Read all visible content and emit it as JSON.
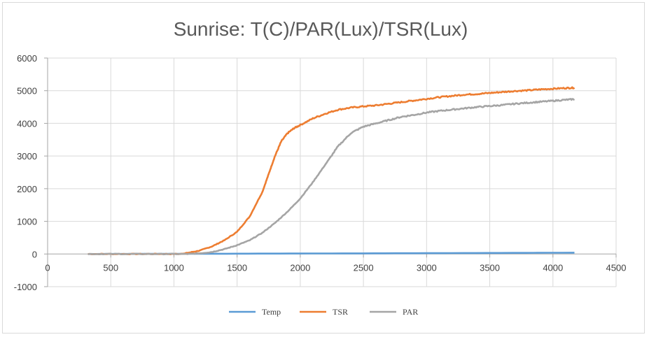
{
  "chart_data": {
    "type": "line",
    "title": "Sunrise: T(C)/PAR(Lux)/TSR(Lux)",
    "xlabel": "",
    "ylabel": "",
    "xlim": [
      0,
      4500
    ],
    "ylim": [
      -1000,
      6000
    ],
    "x_ticks": [
      "0",
      "500",
      "1000",
      "1500",
      "2000",
      "2500",
      "3000",
      "3500",
      "4000",
      "4500"
    ],
    "y_ticks": [
      "6000",
      "5000",
      "4000",
      "3000",
      "2000",
      "1000",
      "0",
      "-1000"
    ],
    "grid": true,
    "legend_position": "bottom",
    "series": [
      {
        "name": "Temp",
        "color": "#5b9bd5",
        "x": [
          320,
          1000,
          2000,
          3000,
          4170
        ],
        "y": [
          0,
          5,
          15,
          25,
          40
        ]
      },
      {
        "name": "TSR",
        "color": "#ed7d31",
        "x": [
          320,
          500,
          700,
          900,
          1050,
          1100,
          1200,
          1300,
          1400,
          1500,
          1600,
          1700,
          1750,
          1800,
          1850,
          1900,
          1950,
          2000,
          2100,
          2200,
          2300,
          2400,
          2500,
          2600,
          2700,
          2800,
          2900,
          3000,
          3100,
          3200,
          3300,
          3400,
          3500,
          3600,
          3700,
          3800,
          3900,
          4000,
          4100,
          4170
        ],
        "y": [
          0,
          0,
          0,
          0,
          0,
          30,
          100,
          230,
          420,
          680,
          1150,
          1900,
          2450,
          3000,
          3450,
          3700,
          3850,
          3950,
          4150,
          4300,
          4420,
          4480,
          4520,
          4550,
          4600,
          4650,
          4700,
          4750,
          4800,
          4840,
          4880,
          4900,
          4930,
          4960,
          4990,
          5010,
          5040,
          5060,
          5080,
          5090
        ]
      },
      {
        "name": "PAR",
        "color": "#a5a5a5",
        "x": [
          320,
          500,
          700,
          900,
          1100,
          1200,
          1300,
          1400,
          1500,
          1600,
          1700,
          1800,
          1900,
          2000,
          2100,
          2200,
          2300,
          2400,
          2500,
          2600,
          2700,
          2800,
          2900,
          3000,
          3100,
          3200,
          3300,
          3400,
          3500,
          3600,
          3700,
          3800,
          3900,
          4000,
          4100,
          4170
        ],
        "y": [
          0,
          0,
          0,
          0,
          0,
          20,
          60,
          150,
          270,
          420,
          650,
          950,
          1300,
          1700,
          2200,
          2750,
          3300,
          3700,
          3900,
          4000,
          4100,
          4200,
          4260,
          4330,
          4380,
          4420,
          4460,
          4500,
          4530,
          4560,
          4600,
          4630,
          4660,
          4690,
          4720,
          4740
        ]
      }
    ]
  }
}
